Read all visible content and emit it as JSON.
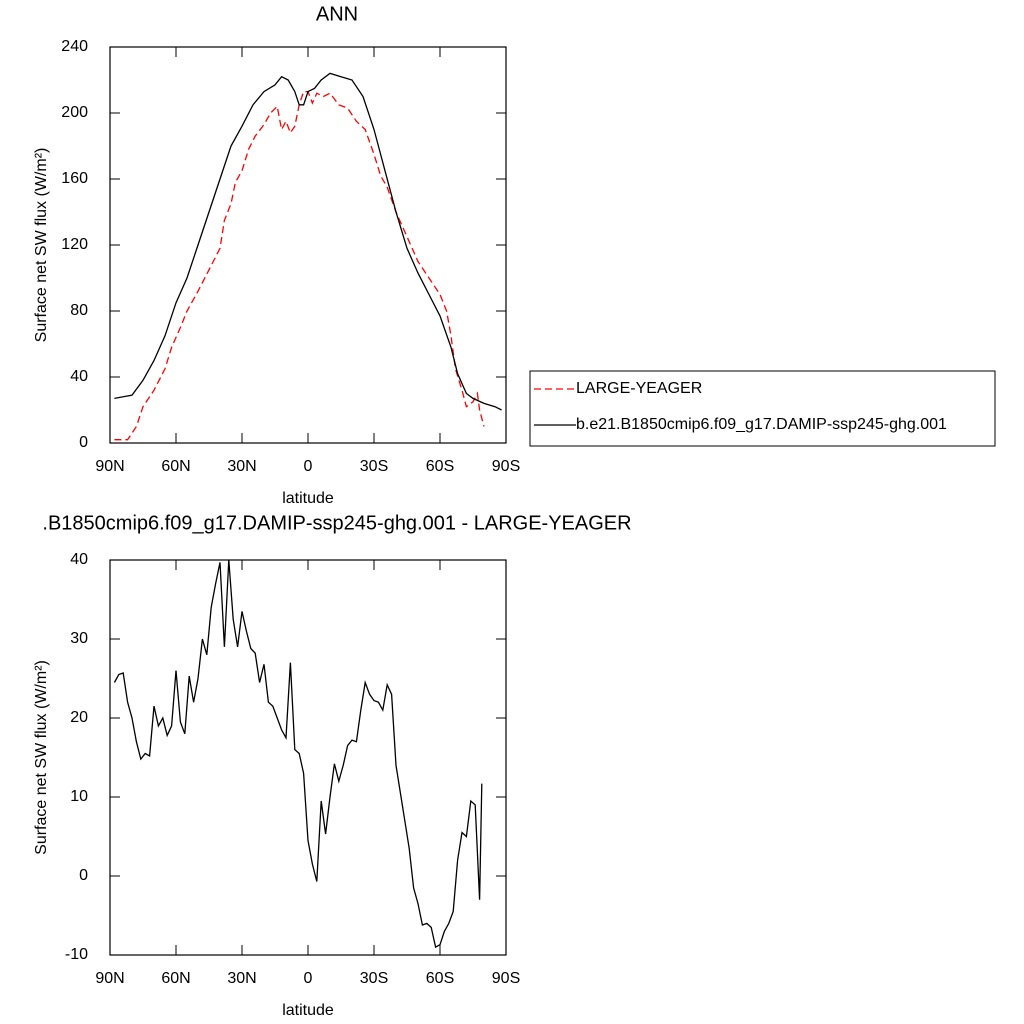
{
  "chart_data": [
    {
      "type": "line",
      "title": "ANN",
      "xlabel": "latitude",
      "ylabel": "Surface net SW flux (W/m²)",
      "xlim": [
        90,
        -90
      ],
      "ylim": [
        0,
        240
      ],
      "xticks": [
        {
          "value": 90,
          "label": "90N"
        },
        {
          "value": 60,
          "label": "60N"
        },
        {
          "value": 30,
          "label": "30N"
        },
        0,
        {
          "value": -30,
          "label": "30S"
        },
        {
          "value": -60,
          "label": "60S"
        },
        {
          "value": -90,
          "label": "90S"
        }
      ],
      "yticks": [
        0,
        40,
        80,
        120,
        160,
        200,
        240
      ],
      "legend": "right",
      "series": [
        {
          "name": "LARGE-YEAGER",
          "color": "#ff0000",
          "dashed": true,
          "x": [
            88,
            82,
            78,
            75,
            70,
            65,
            62,
            58,
            55,
            50,
            45,
            40,
            38,
            35,
            33,
            30,
            27,
            24,
            20,
            17,
            14,
            12,
            10,
            8,
            6,
            4,
            2,
            0,
            -2,
            -4,
            -7,
            -10,
            -14,
            -18,
            -22,
            -26,
            -30,
            -33,
            -36,
            -40,
            -45,
            -50,
            -55,
            -60,
            -63,
            -65,
            -67,
            -70,
            -72,
            -75,
            -77,
            -78,
            -80
          ],
          "values": [
            2,
            2,
            10,
            22,
            32,
            45,
            58,
            70,
            80,
            92,
            105,
            118,
            135,
            145,
            158,
            165,
            178,
            186,
            193,
            200,
            204,
            190,
            195,
            188,
            192,
            205,
            213,
            213,
            206,
            212,
            210,
            212,
            205,
            203,
            195,
            190,
            175,
            162,
            155,
            140,
            125,
            110,
            100,
            90,
            80,
            65,
            45,
            32,
            22,
            25,
            30,
            20,
            10
          ]
        },
        {
          "name": "b.e21.B1850cmip6.f09_g17.DAMIP-ssp245-ghg.001",
          "color": "#000000",
          "dashed": false,
          "x": [
            88,
            80,
            75,
            70,
            65,
            60,
            55,
            50,
            45,
            40,
            35,
            30,
            25,
            20,
            15,
            12,
            9,
            6,
            4,
            2,
            0,
            -3,
            -6,
            -10,
            -15,
            -20,
            -25,
            -30,
            -35,
            -40,
            -45,
            -50,
            -55,
            -60,
            -65,
            -68,
            -72,
            -75,
            -80,
            -85,
            -88
          ],
          "values": [
            27,
            29,
            38,
            50,
            65,
            85,
            100,
            120,
            140,
            160,
            180,
            192,
            205,
            213,
            217,
            222,
            220,
            213,
            205,
            205,
            213,
            215,
            220,
            224,
            222,
            220,
            210,
            190,
            165,
            140,
            118,
            103,
            90,
            77,
            58,
            42,
            30,
            27,
            24,
            22,
            20
          ]
        }
      ]
    },
    {
      "type": "line",
      "title": ".B1850cmip6.f09_g17.DAMIP-ssp245-ghg.001 - LARGE-YEAGER",
      "xlabel": "latitude",
      "ylabel": "Surface net SW flux (W/m²)",
      "xlim": [
        90,
        -90
      ],
      "ylim": [
        -10,
        40
      ],
      "xticks": [
        {
          "value": 90,
          "label": "90N"
        },
        {
          "value": 60,
          "label": "60N"
        },
        {
          "value": 30,
          "label": "30N"
        },
        0,
        {
          "value": -30,
          "label": "30S"
        },
        {
          "value": -60,
          "label": "60S"
        },
        {
          "value": -90,
          "label": "90S"
        }
      ],
      "yticks": [
        -10,
        0,
        10,
        20,
        30,
        40
      ],
      "series": [
        {
          "color": "#000000",
          "dashed": false,
          "x": [
            88,
            86,
            84,
            82,
            80,
            78,
            76,
            74,
            72,
            70,
            68,
            66,
            64,
            62,
            60,
            58,
            56,
            54,
            52,
            50,
            48,
            46,
            44,
            42,
            40,
            38,
            36,
            34,
            32,
            30,
            28,
            26,
            24,
            22,
            20,
            18,
            16,
            14,
            12,
            10,
            8,
            6,
            4,
            2,
            0,
            -2,
            -4,
            -6,
            -8,
            -10,
            -12,
            -14,
            -16,
            -18,
            -20,
            -22,
            -24,
            -26,
            -28,
            -30,
            -32,
            -34,
            -36,
            -38,
            -40,
            -42,
            -44,
            -46,
            -48,
            -50,
            -52,
            -54,
            -56,
            -58,
            -60,
            -62,
            -64,
            -66,
            -68,
            -70,
            -72,
            -74,
            -76,
            -78,
            -79
          ],
          "values": [
            24.5,
            25.5,
            25.7,
            22,
            20,
            17,
            14.8,
            15.5,
            15.2,
            21.5,
            19,
            20,
            17.8,
            19,
            26,
            19.5,
            18,
            25.3,
            22,
            25,
            30,
            28,
            34,
            37,
            39.7,
            29,
            40,
            32.5,
            29,
            33.5,
            31,
            28.8,
            28.2,
            24.5,
            26.8,
            22,
            21.5,
            20,
            18.5,
            17.5,
            27,
            16,
            15.5,
            13,
            4.5,
            1.5,
            -0.7,
            9.5,
            5.3,
            10,
            14.2,
            12,
            14,
            16.5,
            17.2,
            17,
            21,
            24.5,
            23,
            22.2,
            22,
            21,
            24.2,
            23,
            14,
            10.5,
            7,
            3.5,
            -1.5,
            -3.5,
            -6.2,
            -6,
            -6.5,
            -9,
            -8.7,
            -7,
            -6,
            -4.5,
            2,
            5.5,
            5,
            9.5,
            9,
            -3,
            11.7
          ]
        }
      ]
    }
  ]
}
